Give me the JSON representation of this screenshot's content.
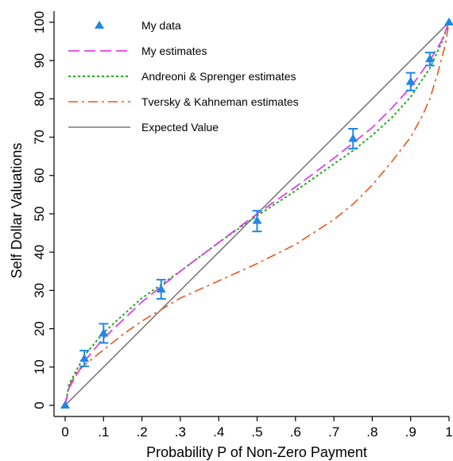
{
  "chart_data": {
    "type": "line",
    "xlabel": "Probability P of Non-Zero Payment",
    "ylabel": "Self Dollar Valuations",
    "xlim": [
      0,
      1
    ],
    "ylim": [
      0,
      100
    ],
    "x_ticks": [
      0,
      0.1,
      0.2,
      0.3,
      0.4,
      0.5,
      0.6,
      0.7,
      0.8,
      0.9,
      1
    ],
    "x_tick_labels": [
      "0",
      ".1",
      ".2",
      ".3",
      ".4",
      ".5",
      ".6",
      ".7",
      ".8",
      ".9",
      "1"
    ],
    "y_ticks": [
      0,
      10,
      20,
      30,
      40,
      50,
      60,
      70,
      80,
      90,
      100
    ],
    "y_tick_labels": [
      "0",
      "10",
      "20",
      "30",
      "40",
      "50",
      "60",
      "70",
      "80",
      "90",
      "100"
    ],
    "grid": false,
    "legend_position": "top-left",
    "series": [
      {
        "name": "My data",
        "kind": "points_with_error_bars",
        "color": "#1f88e5",
        "marker": "triangle",
        "points": [
          {
            "x": 0,
            "y": 0,
            "lo": 0,
            "hi": 0
          },
          {
            "x": 0.05,
            "y": 12.2,
            "lo": 10.2,
            "hi": 14.3
          },
          {
            "x": 0.1,
            "y": 18.8,
            "lo": 16.3,
            "hi": 21.3
          },
          {
            "x": 0.25,
            "y": 30.3,
            "lo": 27.8,
            "hi": 32.8
          },
          {
            "x": 0.5,
            "y": 48.2,
            "lo": 45.4,
            "hi": 50.8
          },
          {
            "x": 0.75,
            "y": 69.6,
            "lo": 67.0,
            "hi": 72.2
          },
          {
            "x": 0.9,
            "y": 84.5,
            "lo": 82.2,
            "hi": 86.8
          },
          {
            "x": 0.95,
            "y": 90.4,
            "lo": 88.7,
            "hi": 92.1
          },
          {
            "x": 1,
            "y": 100,
            "lo": 100,
            "hi": 100
          }
        ]
      },
      {
        "name": "My estimates",
        "kind": "line",
        "color": "#e040e8",
        "dash": "long-dash",
        "x": [
          0,
          0.01,
          0.05,
          0.1,
          0.2,
          0.25,
          0.3,
          0.4,
          0.5,
          0.6,
          0.7,
          0.75,
          0.8,
          0.85,
          0.9,
          0.95,
          0.98,
          1
        ],
        "y": [
          0,
          4.5,
          11.5,
          17.5,
          27,
          31,
          35,
          42.5,
          50,
          57,
          64.5,
          68.5,
          72.5,
          77.5,
          83,
          90,
          95,
          100
        ]
      },
      {
        "name": "Andreoni & Sprenger estimates",
        "kind": "line",
        "color": "#22aa22",
        "dash": "dotted",
        "x": [
          0,
          0.01,
          0.05,
          0.1,
          0.2,
          0.25,
          0.3,
          0.4,
          0.5,
          0.6,
          0.7,
          0.75,
          0.8,
          0.85,
          0.9,
          0.95,
          0.98,
          1
        ],
        "y": [
          0,
          5.5,
          13,
          19,
          28,
          31.5,
          35,
          42.5,
          49.5,
          56,
          63,
          66.5,
          70.5,
          75,
          80.5,
          88,
          94.5,
          100
        ]
      },
      {
        "name": "Tversky & Kahneman estimates",
        "kind": "line",
        "color": "#e8561c",
        "dash": "dash-dot",
        "x": [
          0,
          0.01,
          0.03,
          0.05,
          0.1,
          0.15,
          0.2,
          0.25,
          0.3,
          0.4,
          0.5,
          0.6,
          0.7,
          0.75,
          0.8,
          0.85,
          0.9,
          0.93,
          0.95,
          0.97,
          0.99,
          1
        ],
        "y": [
          0,
          5,
          8.5,
          10.5,
          14.5,
          18.5,
          22,
          25,
          28,
          32.5,
          37,
          42,
          48.5,
          52.5,
          57.5,
          63.5,
          70,
          75.5,
          80,
          86.5,
          94,
          100
        ]
      },
      {
        "name": "Expected Value",
        "kind": "line",
        "color": "#7a7a7a",
        "dash": "solid",
        "x": [
          0,
          1
        ],
        "y": [
          0,
          100
        ]
      }
    ]
  }
}
